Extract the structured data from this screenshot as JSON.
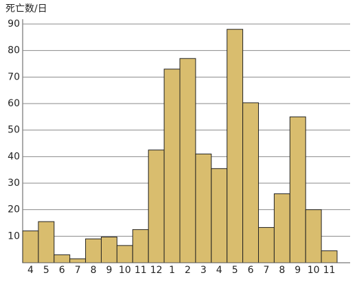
{
  "chart_data": {
    "type": "bar",
    "y_label": "死亡数/日",
    "categories": [
      "4",
      "5",
      "6",
      "7",
      "8",
      "9",
      "10",
      "11",
      "12",
      "1",
      "2",
      "3",
      "4",
      "5",
      "6",
      "7",
      "8",
      "9",
      "10",
      "11"
    ],
    "values": [
      12,
      15.5,
      3,
      1.5,
      9,
      9.7,
      6.5,
      12.5,
      42.5,
      73,
      77,
      41,
      35.5,
      88,
      60.3,
      13.3,
      26,
      55,
      20,
      4.5
    ],
    "color": "#d9bd6e",
    "ylim": [
      0,
      90
    ],
    "yticks": [
      10,
      20,
      30,
      40,
      50,
      60,
      70,
      80,
      90
    ],
    "grid": true
  }
}
